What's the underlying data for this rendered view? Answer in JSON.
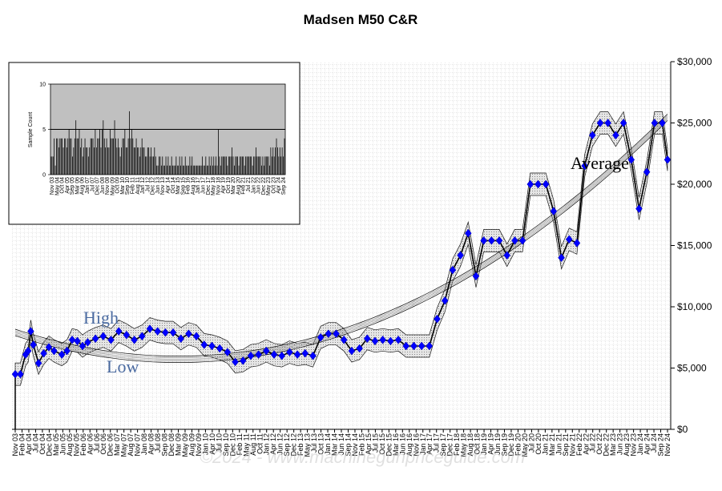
{
  "chart_data": {
    "type": "line",
    "title": "Madsen M50 C&R",
    "yticks": [
      "$0",
      "$5,000",
      "$10,000",
      "$15,000",
      "$20,000",
      "$25,000",
      "$30,000"
    ],
    "ylim": [
      0,
      30000
    ],
    "x_range": [
      "2003-11",
      "2024-11"
    ],
    "xticks": [
      "Nov 03",
      "Feb 04",
      "Apr 04",
      "Jul 04",
      "Oct 04",
      "Dec 04",
      "Mar 05",
      "Jun 05",
      "Aug 05",
      "Nov 05",
      "Feb 06",
      "Apr 06",
      "Jul 06",
      "Oct 06",
      "Dec 06",
      "Mar 07",
      "May 07",
      "Aug 07",
      "Nov 07",
      "Jan 08",
      "Apr 08",
      "Jul 08",
      "Sep 08",
      "Dec 08",
      "Mar 09",
      "May 09",
      "Aug 09",
      "Nov 09",
      "Jan 10",
      "Apr 10",
      "Jul 10",
      "Sep 10",
      "Dec 10",
      "Feb 11",
      "May 11",
      "Aug 11",
      "Oct 11",
      "Jan 12",
      "Apr 12",
      "Jun 12",
      "Sep 12",
      "Dec 12",
      "Feb 13",
      "May 13",
      "Jul 13",
      "Oct 13",
      "Jan 14",
      "Mar 14",
      "Jun 14",
      "Sep 14",
      "Nov 14",
      "Feb 15",
      "Apr 15",
      "Jul 15",
      "Oct 15",
      "Dec 15",
      "Mar 16",
      "Jun 16",
      "Aug 16",
      "Nov 16",
      "Jan 17",
      "Apr 17",
      "Jul 17",
      "Sep 17",
      "Dec 17",
      "Feb 18",
      "May 18",
      "Aug 18",
      "Oct 18",
      "Jan 19",
      "Apr 19",
      "Jun 19",
      "Sep 19",
      "Dec 19",
      "Feb 20",
      "May 20",
      "Jul 20",
      "Oct 20",
      "Jan 21",
      "Mar 21",
      "Jun 21",
      "Sep 21",
      "Nov 21",
      "Feb 22",
      "Apr 22",
      "Jul 22",
      "Oct 22",
      "Dec 22",
      "Mar 23",
      "Jun 23",
      "Aug 23",
      "Nov 23",
      "Jan 24",
      "Apr 24",
      "Jul 24",
      "Sep 24",
      "Nov 24"
    ],
    "annotations": {
      "average": "Average",
      "high": "High",
      "low": "Low"
    },
    "colors": {
      "average": "#0000ff",
      "price_line": "#000000",
      "high_label": "#4a6aa0",
      "low_label": "#4a6aa0",
      "band": "#d8d8d8"
    },
    "series": [
      {
        "name": "Average",
        "x": [
          "2003-11",
          "2004-01",
          "2004-03",
          "2004-04",
          "2004-05",
          "2004-06",
          "2004-08",
          "2004-10",
          "2004-12",
          "2005-02",
          "2005-05",
          "2005-07",
          "2005-09",
          "2005-11",
          "2006-01",
          "2006-03",
          "2006-06",
          "2006-09",
          "2006-12",
          "2007-03",
          "2007-06",
          "2007-09",
          "2007-12",
          "2008-03",
          "2008-06",
          "2008-09",
          "2008-12",
          "2009-03",
          "2009-06",
          "2009-09",
          "2009-12",
          "2010-03",
          "2010-06",
          "2010-09",
          "2010-12",
          "2011-03",
          "2011-06",
          "2011-09",
          "2011-12",
          "2012-03",
          "2012-06",
          "2012-09",
          "2012-12",
          "2013-03",
          "2013-06",
          "2013-09",
          "2013-12",
          "2014-03",
          "2014-06",
          "2014-09",
          "2014-12",
          "2015-03",
          "2015-06",
          "2015-09",
          "2015-12",
          "2016-03",
          "2016-06",
          "2016-09",
          "2016-12",
          "2017-03",
          "2017-06",
          "2017-09",
          "2017-12",
          "2018-03",
          "2018-06",
          "2018-09",
          "2018-12",
          "2019-03",
          "2019-06",
          "2019-09",
          "2019-12",
          "2020-03",
          "2020-06",
          "2020-09",
          "2020-12",
          "2021-03",
          "2021-06",
          "2021-09",
          "2021-12",
          "2022-03",
          "2022-06",
          "2022-09",
          "2022-12",
          "2023-03",
          "2023-06",
          "2023-09",
          "2023-12",
          "2024-03",
          "2024-06",
          "2024-09",
          "2024-11"
        ],
        "y": [
          4500,
          4500,
          6100,
          6400,
          8000,
          6900,
          5400,
          6200,
          6700,
          6400,
          6100,
          6400,
          7300,
          7200,
          6800,
          7100,
          7400,
          7600,
          7300,
          8000,
          7700,
          7300,
          7600,
          8200,
          8000,
          7900,
          7900,
          7400,
          7800,
          7600,
          6900,
          6800,
          6600,
          6300,
          5500,
          5600,
          6000,
          6100,
          6400,
          6100,
          6000,
          6300,
          6100,
          6200,
          6000,
          7500,
          7800,
          7800,
          7300,
          6400,
          6600,
          7400,
          7200,
          7300,
          7200,
          7300,
          6800,
          6800,
          6800,
          6800,
          9000,
          10500,
          13000,
          14200,
          16000,
          12500,
          15400,
          15400,
          15400,
          14200,
          15400,
          15400,
          20000,
          20000,
          20000,
          17800,
          14000,
          15500,
          15200,
          21500,
          24000,
          25000,
          25000,
          24000,
          25000,
          22000,
          18000,
          21000,
          25000,
          25000,
          22000
        ]
      }
    ]
  },
  "inset": {
    "ylabel": "Sample Count",
    "yticks": [
      "0",
      "5",
      "10"
    ],
    "ylim": [
      0,
      10
    ],
    "threshold": 5,
    "xticks": [
      "Nov 03",
      "May 04",
      "Oct 04",
      "Apr 05",
      "Sep 05",
      "Mar 06",
      "Aug 06",
      "Jan 07",
      "Jul 07",
      "Dec 07",
      "Jun 08",
      "Nov 08",
      "May 09",
      "Oct 09",
      "Mar 10",
      "Sep 10",
      "Feb 11",
      "Aug 11",
      "Jan 12",
      "Jul 12",
      "Dec 12",
      "Jun 13",
      "Nov 13",
      "Apr 14",
      "Oct 14",
      "Mar 15",
      "Sep 15",
      "Feb 16",
      "Aug 16",
      "Jan 17",
      "Jun 17",
      "Dec 17",
      "May 18",
      "Nov 18",
      "Apr 19",
      "Oct 19",
      "Mar 20",
      "Aug 20",
      "Feb 21",
      "Jul 21",
      "Jan 22",
      "Jun 22",
      "Dec 22",
      "May 23",
      "Oct 23",
      "Apr 24",
      "Sep 24"
    ],
    "counts": [
      2,
      2,
      2,
      4,
      1,
      4,
      4,
      3,
      4,
      4,
      4,
      3,
      4,
      4,
      3,
      4,
      5,
      4,
      4,
      2,
      3,
      4,
      6,
      4,
      4,
      5,
      3,
      4,
      2,
      3,
      4,
      3,
      3,
      2,
      3,
      4,
      4,
      4,
      3,
      5,
      3,
      4,
      4,
      5,
      3,
      5,
      6,
      4,
      3,
      4,
      3,
      3,
      5,
      4,
      4,
      4,
      6,
      4,
      3,
      4,
      3,
      2,
      3,
      4,
      4,
      5,
      3,
      3,
      4,
      7,
      4,
      5,
      4,
      3,
      3,
      4,
      3,
      3,
      2,
      3,
      4,
      3,
      3,
      2,
      2,
      3,
      3,
      2,
      3,
      2,
      2,
      3,
      2,
      1,
      1,
      2,
      2,
      1,
      2,
      1,
      1,
      2,
      1,
      2,
      1,
      1,
      2,
      1,
      1,
      1,
      2,
      1,
      1,
      2,
      1,
      2,
      1,
      1,
      2,
      1,
      1,
      1,
      2,
      1,
      2,
      1,
      1,
      1,
      1,
      1,
      1,
      1,
      1,
      2,
      1,
      1,
      2,
      1,
      1,
      2,
      1,
      2,
      1,
      2,
      1,
      2,
      1,
      5,
      2,
      1,
      2,
      2,
      2,
      2,
      2,
      1,
      2,
      2,
      2,
      3,
      2,
      1,
      2,
      2,
      2,
      1,
      2,
      2,
      2,
      2,
      1,
      2,
      2,
      2,
      2,
      2,
      2,
      1,
      2,
      2,
      3,
      2,
      2,
      2,
      2,
      1,
      2,
      1,
      2,
      2,
      2,
      2,
      1,
      3,
      2,
      3,
      2,
      3,
      4,
      3,
      2,
      3,
      2,
      3,
      2,
      4
    ]
  },
  "watermark": "©2024 - www.machinegunpriceguide.com"
}
